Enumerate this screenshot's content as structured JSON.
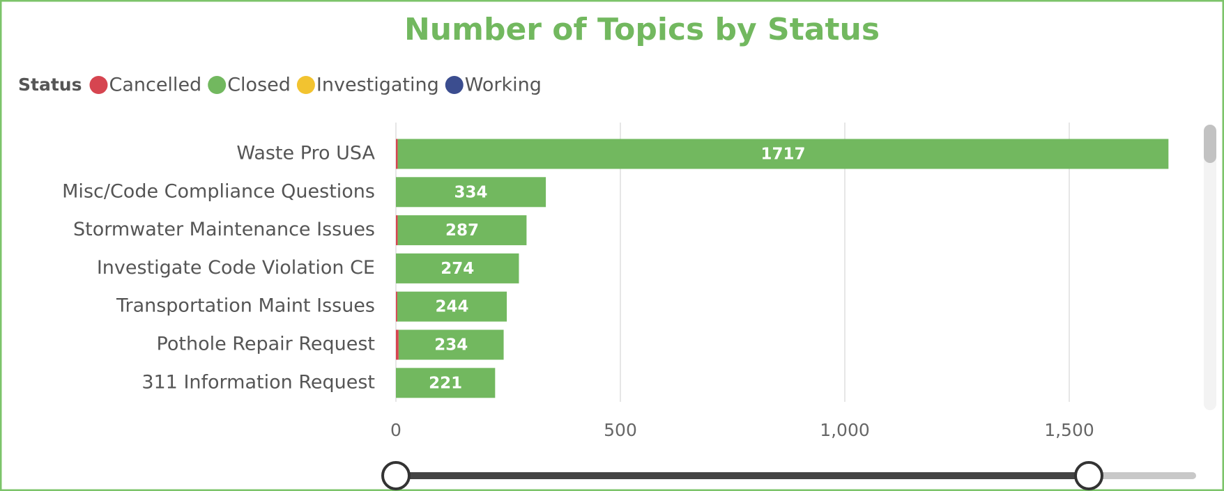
{
  "chart_data": {
    "type": "stacked_barh",
    "title": "Number of Topics by Status",
    "legend_title": "Status",
    "categories": [
      "Waste Pro USA",
      "Misc/Code Compliance Questions",
      "Stormwater Maintenance Issues",
      "Investigate Code Violation CE",
      "Transportation Maint Issues",
      "Pothole Repair Request",
      "311 Information Request"
    ],
    "series": [
      {
        "name": "Cancelled",
        "color": "#d64550",
        "values": [
          4,
          null,
          4,
          null,
          3,
          6,
          null
        ]
      },
      {
        "name": "Closed",
        "color": "#72b85f",
        "values": [
          1717,
          334,
          287,
          274,
          244,
          234,
          221
        ],
        "labels": true
      },
      {
        "name": "Investigating",
        "color": "#f2c330",
        "values": [
          null,
          null,
          null,
          null,
          null,
          null,
          null
        ]
      },
      {
        "name": "Working",
        "color": "#3b4d8f",
        "values": [
          null,
          null,
          null,
          null,
          null,
          null,
          null
        ]
      }
    ],
    "xlim": [
      0,
      1750
    ],
    "xticks": [
      0,
      500,
      {
        "value": 1000,
        "label": "1,000"
      },
      {
        "value": 1500,
        "label": "1,500"
      }
    ],
    "grid": true,
    "legend": "top-left"
  }
}
